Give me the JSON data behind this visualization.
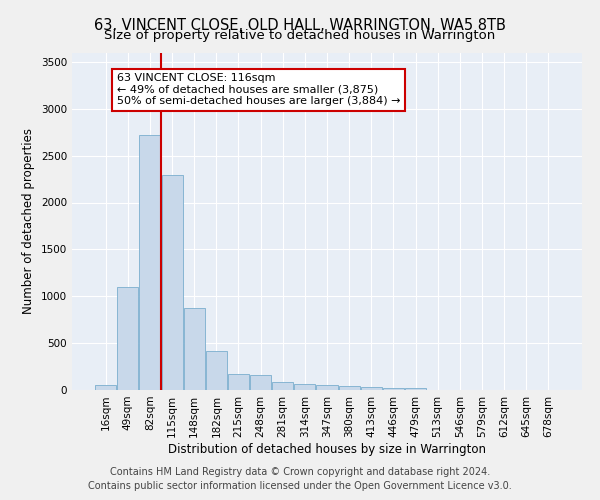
{
  "title": "63, VINCENT CLOSE, OLD HALL, WARRINGTON, WA5 8TB",
  "subtitle": "Size of property relative to detached houses in Warrington",
  "xlabel": "Distribution of detached houses by size in Warrington",
  "ylabel": "Number of detached properties",
  "bar_color": "#c8d8ea",
  "bar_edge_color": "#7aaece",
  "background_color": "#e8eef6",
  "grid_color": "#ffffff",
  "fig_facecolor": "#f0f0f0",
  "categories": [
    "16sqm",
    "49sqm",
    "82sqm",
    "115sqm",
    "148sqm",
    "182sqm",
    "215sqm",
    "248sqm",
    "281sqm",
    "314sqm",
    "347sqm",
    "380sqm",
    "413sqm",
    "446sqm",
    "479sqm",
    "513sqm",
    "546sqm",
    "579sqm",
    "612sqm",
    "645sqm",
    "678sqm"
  ],
  "values": [
    55,
    1100,
    2720,
    2290,
    870,
    420,
    170,
    165,
    90,
    65,
    55,
    40,
    35,
    20,
    25,
    5,
    5,
    0,
    0,
    0,
    0
  ],
  "property_bin_index": 3,
  "property_line_label": "63 VINCENT CLOSE: 116sqm",
  "annotation_line1": "← 49% of detached houses are smaller (3,875)",
  "annotation_line2": "50% of semi-detached houses are larger (3,884) →",
  "ylim_max": 3600,
  "yticks": [
    0,
    500,
    1000,
    1500,
    2000,
    2500,
    3000,
    3500
  ],
  "footer_line1": "Contains HM Land Registry data © Crown copyright and database right 2024.",
  "footer_line2": "Contains public sector information licensed under the Open Government Licence v3.0.",
  "annotation_box_facecolor": "#ffffff",
  "annotation_box_edgecolor": "#cc0000",
  "property_line_color": "#cc0000",
  "title_fontsize": 10.5,
  "subtitle_fontsize": 9.5,
  "axis_label_fontsize": 8.5,
  "tick_fontsize": 7.5,
  "annotation_fontsize": 8,
  "footer_fontsize": 7
}
